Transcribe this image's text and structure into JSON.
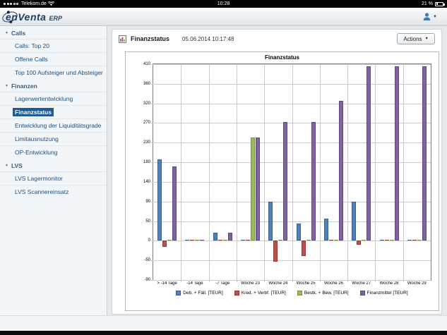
{
  "status_bar": {
    "carrier": "Telekom.de",
    "time": "10:28",
    "battery": "21 %"
  },
  "app_header": {
    "logo_text": "enVenta",
    "logo_suffix": "ERP"
  },
  "sidebar": {
    "selected": "Finanzstatus",
    "groups": [
      {
        "label": "Calls",
        "items": [
          "Calls: Top 20",
          "Offene Calls",
          "Top 100 Aufsteiger und Absteiger"
        ]
      },
      {
        "label": "Finanzen",
        "items": [
          "Lagerwertentwicklung",
          "Finanzstatus",
          "Entwicklung der Liquiditätsgrade",
          "Limitausnutzung",
          "OP-Entwicklung"
        ]
      },
      {
        "label": "LVS",
        "items": [
          "LVS Lagermonitor",
          "LVS Scannereinsatz"
        ]
      }
    ]
  },
  "panel": {
    "title": "Finanzstatus",
    "timestamp": "05.06.2014 10:17:48",
    "actions_label": "Actions"
  },
  "chart_data": {
    "type": "bar",
    "title": "Finanzstatus",
    "xlabel": "",
    "ylabel": "",
    "ylim": [
      -90,
      410
    ],
    "grid": true,
    "legend_position": "bottom",
    "y_ticks": [
      410,
      360,
      320,
      270,
      230,
      180,
      140,
      90,
      50,
      0,
      -50,
      -90
    ],
    "categories": [
      "> -14 Tage",
      "-14 Tage",
      "-7 Tage",
      "Woche 23",
      "Woche 24",
      "Woche 25",
      "Woche 26",
      "Woche 27",
      "Woche 28",
      "Woche 29"
    ],
    "series": [
      {
        "name": "Deb. + Fäll. [TEUR]",
        "color": "#4f81bd",
        "border": "#385d8a",
        "values": [
          187,
          0,
          20,
          0,
          90,
          43,
          55,
          90,
          0,
          0
        ]
      },
      {
        "name": "Kred. + Verbf. [TEUR]",
        "color": "#c0504d",
        "border": "#953735",
        "values": [
          -15,
          0,
          0,
          0,
          -53,
          -38,
          0,
          -10,
          0,
          0
        ]
      },
      {
        "name": "Bestk. + Bew. [TEUR]",
        "color": "#9bbb59",
        "border": "#76923c",
        "values": [
          0,
          0,
          0,
          240,
          0,
          0,
          0,
          0,
          0,
          0
        ]
      },
      {
        "name": "Finanzmittel [TEUR]",
        "color": "#8064a2",
        "border": "#5f497a",
        "values": [
          172,
          0,
          20,
          240,
          272,
          272,
          325,
          405,
          405,
          405
        ]
      }
    ]
  }
}
